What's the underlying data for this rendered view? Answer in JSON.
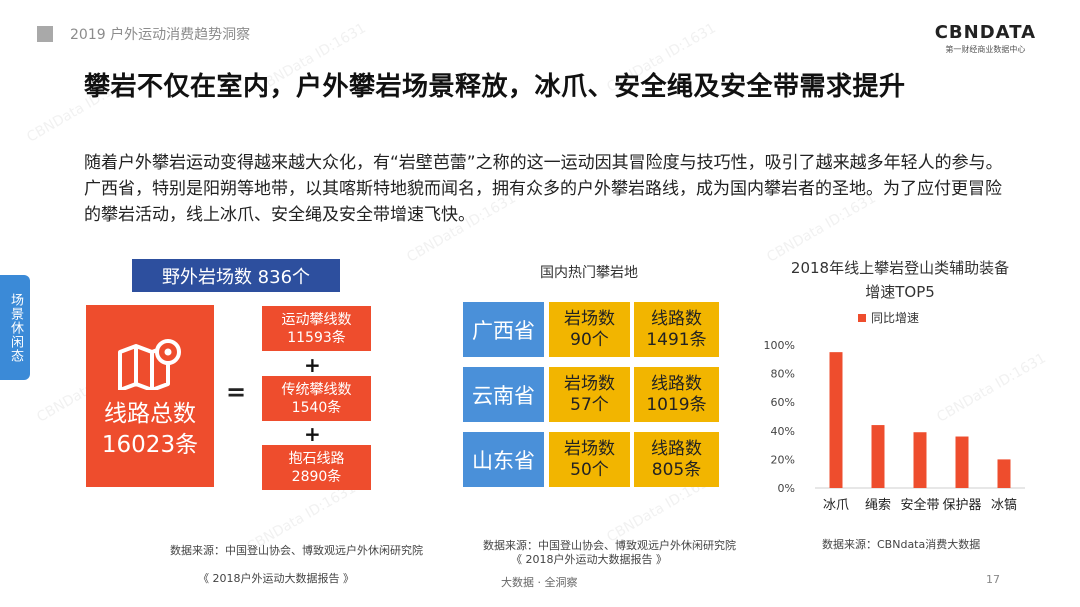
{
  "header": {
    "report_title": "2019 户外运动消费趋势洞察"
  },
  "logo": {
    "name": "CBNDATA",
    "tagline": "第一财经商业数据中心"
  },
  "title": "攀岩不仅在室内，户外攀岩场景释放，冰爪、安全绳及安全带需求提升",
  "body": "随着户外攀岩运动变得越来越大众化，有“岩壁芭蕾”之称的这一运动因其冒险度与技巧性，吸引了越来越多年轻人的参与。广西省，特别是阳朔等地带，以其喀斯特地貌而闻名，拥有众多的户外攀岩路线，成为国内攀岩者的圣地。为了应付更冒险的攀岩活动，线上冰爪、安全绳及安全带增速飞快。",
  "side_tab": "场景休闲态",
  "left_panel": {
    "wild_count": "野外岩场数 836个",
    "total_label_1": "线路总数",
    "total_label_2": "16023条",
    "equals": "=",
    "plus": "+",
    "items": [
      {
        "name": "运动攀线数",
        "value": "11593条"
      },
      {
        "name": "传统攀线数",
        "value": "1540条"
      },
      {
        "name": "抱石线路",
        "value": "2890条"
      }
    ],
    "source_1": "数据来源：中国登山协会、博致观远户外休闲研究院",
    "source_2": "《 2018户外运动大数据报告 》"
  },
  "middle_panel": {
    "title": "国内热门攀岩地",
    "rows": [
      {
        "province": "广西省",
        "sites_label": "岩场数",
        "sites": "90个",
        "routes_label": "线路数",
        "routes": "1491条"
      },
      {
        "province": "云南省",
        "sites_label": "岩场数",
        "sites": "57个",
        "routes_label": "线路数",
        "routes": "1019条"
      },
      {
        "province": "山东省",
        "sites_label": "岩场数",
        "sites": "50个",
        "routes_label": "线路数",
        "routes": "805条"
      }
    ],
    "source_1": "数据来源：中国登山协会、博致观远户外休闲研究院",
    "source_2": "《 2018户外运动大数据报告 》"
  },
  "chart_data": {
    "type": "bar",
    "title": "2018年线上攀岩登山类辅助装备增速TOP5",
    "categories": [
      "冰爪",
      "绳索",
      "安全带",
      "保护器",
      "冰镐"
    ],
    "series": [
      {
        "name": "同比增速",
        "values": [
          95,
          44,
          39,
          36,
          20
        ]
      }
    ],
    "ylim": [
      0,
      100
    ],
    "yticks": [
      "0%",
      "20%",
      "40%",
      "60%",
      "80%",
      "100%"
    ],
    "ytick_values": [
      0,
      20,
      40,
      60,
      80,
      100
    ],
    "legend": "top",
    "grid": false,
    "color": "#ee4d2d",
    "source": "数据来源：CBNdata消费大数据"
  },
  "footer": {
    "center": "大数据 · 全洞察",
    "page": "17"
  },
  "watermark": "CBNData ID:1631",
  "colors": {
    "accent_red": "#ee4d2d",
    "navy": "#2d4f9e",
    "blue": "#4a90d9",
    "yellow": "#f2b500",
    "side_tab": "#3b8ad7"
  }
}
